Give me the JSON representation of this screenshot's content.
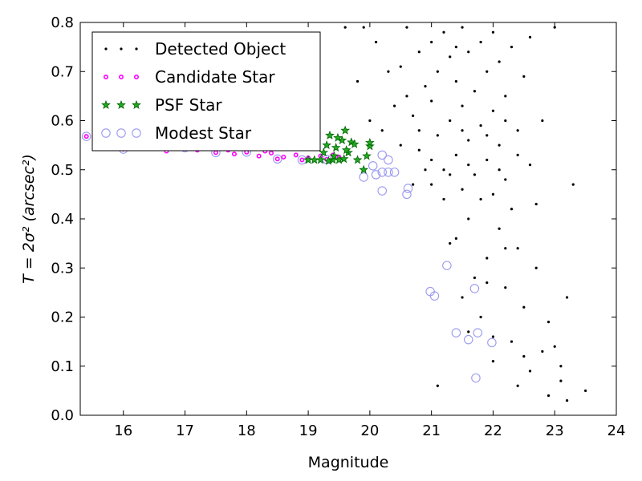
{
  "chart_data": {
    "type": "scatter",
    "title": "",
    "xlabel": "Magnitude",
    "ylabel": "T = 2σ² (arcsec²)",
    "xlim": [
      15.3,
      24
    ],
    "ylim": [
      0.0,
      0.8
    ],
    "xticks": [
      16,
      17,
      18,
      19,
      20,
      21,
      22,
      23,
      24
    ],
    "yticks": [
      0.0,
      0.1,
      0.2,
      0.3,
      0.4,
      0.5,
      0.6,
      0.7,
      0.8
    ],
    "xtick_labels": [
      "16",
      "17",
      "18",
      "19",
      "20",
      "21",
      "22",
      "23",
      "24"
    ],
    "ytick_labels": [
      "0.0",
      "0.1",
      "0.2",
      "0.3",
      "0.4",
      "0.5",
      "0.6",
      "0.7",
      "0.8"
    ],
    "grid": false,
    "legend_position": "top-left",
    "colors": {
      "detected": "#000000",
      "candidate": "#ff00ff",
      "psf_fill": "#22aa22",
      "psf_edge": "#006400",
      "modest": "#9999ee"
    },
    "series": [
      {
        "name": "Detected Object",
        "marker": "dot",
        "points": [
          [
            20.6,
            0.79
          ],
          [
            21.2,
            0.78
          ],
          [
            21.5,
            0.79
          ],
          [
            22.0,
            0.78
          ],
          [
            21.0,
            0.76
          ],
          [
            21.8,
            0.76
          ],
          [
            22.3,
            0.75
          ],
          [
            20.8,
            0.74
          ],
          [
            21.3,
            0.73
          ],
          [
            21.6,
            0.74
          ],
          [
            22.1,
            0.72
          ],
          [
            20.5,
            0.71
          ],
          [
            21.1,
            0.7
          ],
          [
            21.9,
            0.7
          ],
          [
            22.5,
            0.69
          ],
          [
            21.4,
            0.68
          ],
          [
            20.9,
            0.67
          ],
          [
            21.7,
            0.66
          ],
          [
            22.2,
            0.65
          ],
          [
            21.0,
            0.64
          ],
          [
            21.5,
            0.63
          ],
          [
            22.0,
            0.62
          ],
          [
            20.7,
            0.61
          ],
          [
            21.3,
            0.6
          ],
          [
            21.8,
            0.59
          ],
          [
            22.4,
            0.58
          ],
          [
            21.1,
            0.57
          ],
          [
            21.6,
            0.56
          ],
          [
            22.1,
            0.55
          ],
          [
            20.8,
            0.54
          ],
          [
            21.4,
            0.53
          ],
          [
            21.9,
            0.52
          ],
          [
            22.6,
            0.51
          ],
          [
            21.2,
            0.5
          ],
          [
            21.7,
            0.49
          ],
          [
            22.2,
            0.48
          ],
          [
            21.0,
            0.47
          ],
          [
            21.5,
            0.46
          ],
          [
            22.0,
            0.45
          ],
          [
            21.8,
            0.44
          ],
          [
            22.3,
            0.42
          ],
          [
            21.6,
            0.4
          ],
          [
            22.1,
            0.38
          ],
          [
            21.4,
            0.36
          ],
          [
            22.4,
            0.34
          ],
          [
            21.9,
            0.32
          ],
          [
            22.7,
            0.3
          ],
          [
            21.7,
            0.28
          ],
          [
            22.2,
            0.26
          ],
          [
            21.5,
            0.24
          ],
          [
            22.5,
            0.22
          ],
          [
            21.8,
            0.2
          ],
          [
            22.9,
            0.19
          ],
          [
            21.6,
            0.17
          ],
          [
            22.3,
            0.15
          ],
          [
            22.8,
            0.13
          ],
          [
            22.0,
            0.11
          ],
          [
            22.6,
            0.09
          ],
          [
            23.1,
            0.07
          ],
          [
            22.4,
            0.06
          ],
          [
            22.9,
            0.04
          ],
          [
            23.2,
            0.03
          ],
          [
            23.5,
            0.05
          ],
          [
            23.0,
            0.14
          ],
          [
            23.2,
            0.24
          ],
          [
            23.3,
            0.47
          ],
          [
            22.8,
            0.6
          ],
          [
            23.0,
            0.79
          ],
          [
            22.6,
            0.77
          ],
          [
            22.1,
            0.5
          ],
          [
            20.3,
            0.7
          ],
          [
            20.4,
            0.63
          ],
          [
            20.2,
            0.58
          ],
          [
            20.1,
            0.76
          ],
          [
            19.9,
            0.79
          ],
          [
            19.6,
            0.79
          ],
          [
            19.8,
            0.68
          ],
          [
            20.0,
            0.6
          ],
          [
            20.5,
            0.55
          ],
          [
            20.9,
            0.5
          ],
          [
            21.2,
            0.44
          ],
          [
            21.3,
            0.35
          ],
          [
            21.9,
            0.27
          ],
          [
            22.0,
            0.16
          ],
          [
            22.5,
            0.12
          ],
          [
            21.1,
            0.06
          ],
          [
            22.7,
            0.43
          ],
          [
            23.1,
            0.1
          ],
          [
            22.2,
            0.34
          ],
          [
            21.4,
            0.75
          ],
          [
            20.6,
            0.65
          ],
          [
            20.8,
            0.58
          ],
          [
            21.0,
            0.52
          ],
          [
            21.3,
            0.49
          ],
          [
            21.6,
            0.51
          ],
          [
            21.9,
            0.57
          ],
          [
            22.2,
            0.6
          ],
          [
            22.4,
            0.53
          ],
          [
            20.7,
            0.47
          ],
          [
            21.5,
            0.58
          ]
        ]
      },
      {
        "name": "Candidate Star",
        "marker": "small-circle",
        "points": [
          [
            15.4,
            0.568
          ],
          [
            15.7,
            0.556
          ],
          [
            16.0,
            0.542
          ],
          [
            16.3,
            0.547
          ],
          [
            16.5,
            0.55
          ],
          [
            16.7,
            0.538
          ],
          [
            17.0,
            0.545
          ],
          [
            17.2,
            0.54
          ],
          [
            17.5,
            0.535
          ],
          [
            17.8,
            0.532
          ],
          [
            18.0,
            0.536
          ],
          [
            18.2,
            0.528
          ],
          [
            18.4,
            0.534
          ],
          [
            18.5,
            0.522
          ],
          [
            18.6,
            0.526
          ],
          [
            18.8,
            0.53
          ],
          [
            18.9,
            0.52
          ],
          [
            19.0,
            0.524
          ],
          [
            19.2,
            0.528
          ],
          [
            19.3,
            0.521
          ],
          [
            19.4,
            0.53
          ],
          [
            19.5,
            0.526
          ],
          [
            15.9,
            0.556
          ],
          [
            16.9,
            0.548
          ],
          [
            17.7,
            0.54
          ],
          [
            18.3,
            0.538
          ]
        ]
      },
      {
        "name": "PSF Star",
        "marker": "star",
        "points": [
          [
            19.0,
            0.52
          ],
          [
            19.1,
            0.52
          ],
          [
            19.2,
            0.52
          ],
          [
            19.25,
            0.535
          ],
          [
            19.3,
            0.55
          ],
          [
            19.35,
            0.57
          ],
          [
            19.4,
            0.52
          ],
          [
            19.45,
            0.545
          ],
          [
            19.5,
            0.52
          ],
          [
            19.55,
            0.56
          ],
          [
            19.6,
            0.58
          ],
          [
            19.65,
            0.535
          ],
          [
            19.7,
            0.556
          ],
          [
            19.75,
            0.552
          ],
          [
            19.8,
            0.52
          ],
          [
            19.9,
            0.5
          ],
          [
            19.95,
            0.528
          ],
          [
            20.0,
            0.548
          ],
          [
            20.0,
            0.555
          ],
          [
            19.42,
            0.528
          ],
          [
            19.58,
            0.522
          ],
          [
            19.33,
            0.518
          ],
          [
            19.48,
            0.565
          ],
          [
            19.62,
            0.54
          ]
        ]
      },
      {
        "name": "Modest Star",
        "marker": "open-circle",
        "points": [
          [
            15.4,
            0.568
          ],
          [
            16.0,
            0.542
          ],
          [
            16.5,
            0.55
          ],
          [
            17.0,
            0.545
          ],
          [
            17.5,
            0.535
          ],
          [
            18.0,
            0.536
          ],
          [
            18.5,
            0.522
          ],
          [
            18.9,
            0.52
          ],
          [
            19.3,
            0.521
          ],
          [
            19.9,
            0.485
          ],
          [
            20.05,
            0.508
          ],
          [
            20.1,
            0.49
          ],
          [
            20.2,
            0.457
          ],
          [
            20.2,
            0.495
          ],
          [
            20.3,
            0.495
          ],
          [
            20.4,
            0.495
          ],
          [
            20.6,
            0.45
          ],
          [
            20.62,
            0.462
          ],
          [
            21.25,
            0.305
          ],
          [
            20.98,
            0.252
          ],
          [
            21.05,
            0.243
          ],
          [
            21.7,
            0.258
          ],
          [
            21.4,
            0.168
          ],
          [
            21.6,
            0.154
          ],
          [
            21.75,
            0.168
          ],
          [
            21.72,
            0.076
          ],
          [
            21.98,
            0.148
          ],
          [
            20.2,
            0.53
          ],
          [
            20.3,
            0.52
          ]
        ]
      }
    ]
  }
}
